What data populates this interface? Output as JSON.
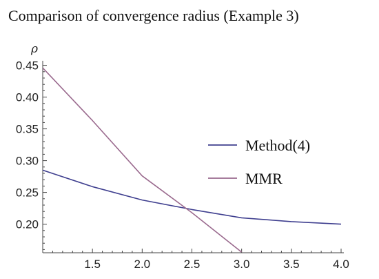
{
  "chart_data": {
    "type": "line",
    "title": "Comparison of  convergence radius (Example 3)",
    "ylabel": "ρ",
    "xlabel": "",
    "xlim": [
      1.0,
      4.0
    ],
    "ylim": [
      0.155,
      0.455
    ],
    "xticks": [
      "1.5",
      "2.0",
      "2.5",
      "3.0",
      "3.5",
      "4.0"
    ],
    "xtick_values": [
      1.5,
      2.0,
      2.5,
      3.0,
      3.5,
      4.0
    ],
    "yticks": [
      "0.20",
      "0.25",
      "0.30",
      "0.35",
      "0.40",
      "0.45"
    ],
    "ytick_values": [
      0.2,
      0.25,
      0.3,
      0.35,
      0.4,
      0.45
    ],
    "grid": false,
    "legend_position": "right",
    "series": [
      {
        "name": "Method(4)",
        "color": "#3f3f8f",
        "x": [
          1.0,
          1.5,
          2.0,
          2.5,
          3.0,
          3.5,
          4.0
        ],
        "y": [
          0.285,
          0.259,
          0.238,
          0.223,
          0.21,
          0.204,
          0.2
        ]
      },
      {
        "name": "MMR",
        "color": "#9a6a8e",
        "x": [
          1.0,
          1.5,
          2.0,
          2.5,
          3.0
        ],
        "y": [
          0.446,
          0.363,
          0.276,
          0.218,
          0.156
        ]
      }
    ]
  }
}
